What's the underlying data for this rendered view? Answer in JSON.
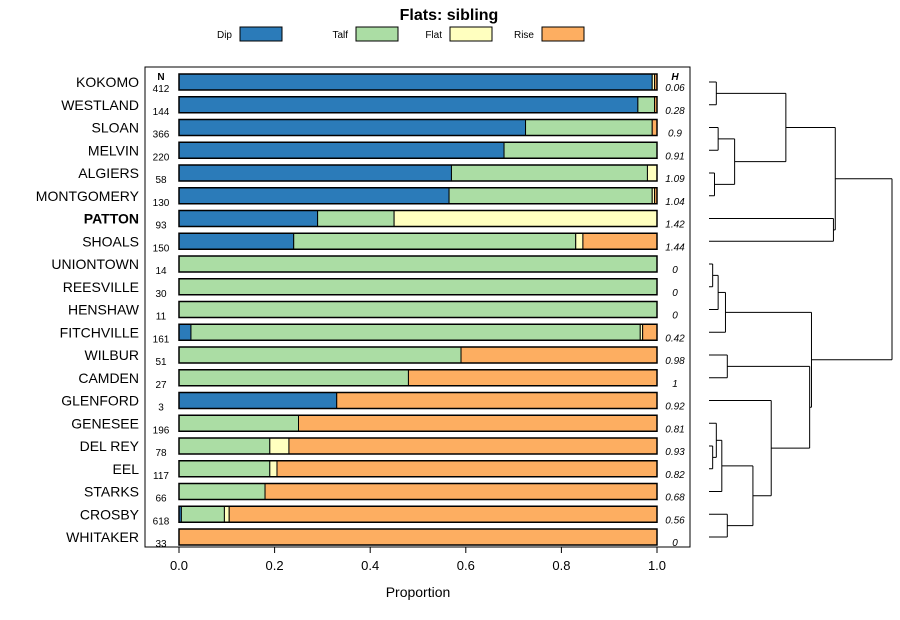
{
  "chart_data": {
    "type": "bar",
    "orientation": "horizontal",
    "stacked": true,
    "title": "Flats: sibling",
    "xlabel": "Proportion",
    "xlim": [
      0,
      1
    ],
    "x_ticks": [
      "0.0",
      "0.2",
      "0.4",
      "0.6",
      "0.8",
      "1.0"
    ],
    "n_header": "N",
    "h_header": "H",
    "highlighted_category": "PATTON",
    "legend_position": "top",
    "series": [
      {
        "name": "Dip",
        "color": "#2b7bb9"
      },
      {
        "name": "Talf",
        "color": "#abdda4"
      },
      {
        "name": "Flat",
        "color": "#ffffbf"
      },
      {
        "name": "Rise",
        "color": "#fdae61"
      }
    ],
    "rows": [
      {
        "label": "KOKOMO",
        "n": "412",
        "h": "0.06",
        "values": [
          0.99,
          0.0,
          0.005,
          0.005
        ]
      },
      {
        "label": "WESTLAND",
        "n": "144",
        "h": "0.28",
        "values": [
          0.96,
          0.035,
          0.0,
          0.005
        ]
      },
      {
        "label": "SLOAN",
        "n": "366",
        "h": "0.9",
        "values": [
          0.725,
          0.265,
          0.0,
          0.01
        ]
      },
      {
        "label": "MELVIN",
        "n": "220",
        "h": "0.91",
        "values": [
          0.68,
          0.32,
          0.0,
          0.0
        ]
      },
      {
        "label": "ALGIERS",
        "n": "58",
        "h": "1.09",
        "values": [
          0.57,
          0.41,
          0.02,
          0.0
        ]
      },
      {
        "label": "MONTGOMERY",
        "n": "130",
        "h": "1.04",
        "values": [
          0.565,
          0.425,
          0.005,
          0.005
        ]
      },
      {
        "label": "PATTON",
        "n": "93",
        "h": "1.42",
        "values": [
          0.29,
          0.16,
          0.55,
          0.0
        ]
      },
      {
        "label": "SHOALS",
        "n": "150",
        "h": "1.44",
        "values": [
          0.24,
          0.59,
          0.015,
          0.155
        ]
      },
      {
        "label": "UNIONTOWN",
        "n": "14",
        "h": "0",
        "values": [
          0.0,
          1.0,
          0.0,
          0.0
        ]
      },
      {
        "label": "REESVILLE",
        "n": "30",
        "h": "0",
        "values": [
          0.0,
          1.0,
          0.0,
          0.0
        ]
      },
      {
        "label": "HENSHAW",
        "n": "11",
        "h": "0",
        "values": [
          0.0,
          1.0,
          0.0,
          0.0
        ]
      },
      {
        "label": "FITCHVILLE",
        "n": "161",
        "h": "0.42",
        "values": [
          0.025,
          0.94,
          0.005,
          0.03
        ]
      },
      {
        "label": "WILBUR",
        "n": "51",
        "h": "0.98",
        "values": [
          0.0,
          0.59,
          0.0,
          0.41
        ]
      },
      {
        "label": "CAMDEN",
        "n": "27",
        "h": "1",
        "values": [
          0.0,
          0.48,
          0.0,
          0.52
        ]
      },
      {
        "label": "GLENFORD",
        "n": "3",
        "h": "0.92",
        "values": [
          0.33,
          0.0,
          0.0,
          0.67
        ]
      },
      {
        "label": "GENESEE",
        "n": "196",
        "h": "0.81",
        "values": [
          0.0,
          0.25,
          0.0,
          0.75
        ]
      },
      {
        "label": "DEL REY",
        "n": "78",
        "h": "0.93",
        "values": [
          0.0,
          0.19,
          0.04,
          0.77
        ]
      },
      {
        "label": "EEL",
        "n": "117",
        "h": "0.82",
        "values": [
          0.0,
          0.19,
          0.015,
          0.795
        ]
      },
      {
        "label": "STARKS",
        "n": "66",
        "h": "0.68",
        "values": [
          0.0,
          0.18,
          0.0,
          0.82
        ]
      },
      {
        "label": "CROSBY",
        "n": "618",
        "h": "0.56",
        "values": [
          0.005,
          0.09,
          0.01,
          0.895
        ]
      },
      {
        "label": "WHITAKER",
        "n": "33",
        "h": "0",
        "values": [
          0.0,
          0.0,
          0.0,
          1.0
        ]
      }
    ],
    "dendrogram": {
      "leaf_order": [
        "KOKOMO",
        "WESTLAND",
        "SLOAN",
        "MELVIN",
        "ALGIERS",
        "MONTGOMERY",
        "PATTON",
        "SHOALS",
        "UNIONTOWN",
        "REESVILLE",
        "HENSHAW",
        "FITCHVILLE",
        "WILBUR",
        "CAMDEN",
        "GLENFORD",
        "GENESEE",
        "DEL REY",
        "EEL",
        "STARKS",
        "CROSBY",
        "WHITAKER"
      ],
      "max_height": 1.0,
      "merges": [
        {
          "a": "KOKOMO",
          "b": "WESTLAND",
          "height": 0.04
        },
        {
          "a": "SLOAN",
          "b": "MELVIN",
          "height": 0.05
        },
        {
          "a": "ALGIERS",
          "b": "MONTGOMERY",
          "height": 0.03
        },
        {
          "a": 1,
          "b": 2,
          "height": 0.14
        },
        {
          "a": 0,
          "b": 3,
          "height": 0.42
        },
        {
          "a": "PATTON",
          "b": "SHOALS",
          "height": 0.68
        },
        {
          "a": 4,
          "b": 5,
          "height": 0.69
        },
        {
          "a": "UNIONTOWN",
          "b": "REESVILLE",
          "height": 0.02
        },
        {
          "a": 7,
          "b": "HENSHAW",
          "height": 0.05
        },
        {
          "a": 8,
          "b": "FITCHVILLE",
          "height": 0.09
        },
        {
          "a": "WILBUR",
          "b": "CAMDEN",
          "height": 0.1
        },
        {
          "a": "DEL REY",
          "b": "EEL",
          "height": 0.02
        },
        {
          "a": "GENESEE",
          "b": 11,
          "height": 0.04
        },
        {
          "a": 12,
          "b": "STARKS",
          "height": 0.07
        },
        {
          "a": "CROSBY",
          "b": "WHITAKER",
          "height": 0.1
        },
        {
          "a": 13,
          "b": 14,
          "height": 0.24
        },
        {
          "a": "GLENFORD",
          "b": 15,
          "height": 0.34
        },
        {
          "a": 10,
          "b": 16,
          "height": 0.55
        },
        {
          "a": 9,
          "b": 17,
          "height": 0.56
        },
        {
          "a": 6,
          "b": 18,
          "height": 1.0
        }
      ]
    }
  }
}
